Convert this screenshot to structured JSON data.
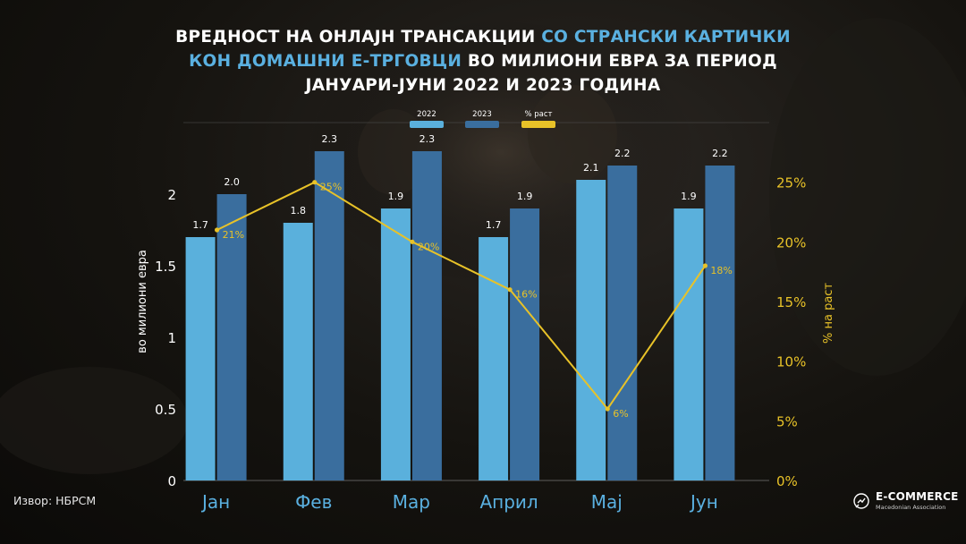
{
  "title": {
    "part1": "ВРЕДНОСТ НА ОНЛАЈН ТРАНСАКЦИИ ",
    "part2_highlight": "СО СТРАНСКИ КАРТИЧКИ",
    "part3_highlight": "КОН ДОМАШНИ Е-ТРГОВЦИ",
    "part4": " ВО МИЛИОНИ ЕВРА ЗА ПЕРИОД",
    "part5": "ЈАНУАРИ-ЈУНИ 2022 И 2023 ГОДИНА"
  },
  "source": "Извор: НБРСМ",
  "logo": {
    "main": "E-COMMERCE",
    "sub": "Macedonian Association"
  },
  "colors": {
    "bar2022": "#5ab0dc",
    "bar2023": "#3a6e9e",
    "growth": "#e8c228",
    "title_highlight": "#5ab0e0"
  },
  "chart_data": {
    "type": "bar",
    "categories": [
      "Јан",
      "Фев",
      "Мар",
      "Април",
      "Мај",
      "Јун"
    ],
    "series": [
      {
        "name": "2022",
        "values": [
          1.7,
          1.8,
          1.9,
          1.7,
          2.1,
          1.9
        ],
        "labels": [
          "1.7",
          "1.8",
          "1.9",
          "1.7",
          "2.1",
          "1.9"
        ]
      },
      {
        "name": "2023",
        "values": [
          2.0,
          2.3,
          2.3,
          1.9,
          2.2,
          2.2
        ],
        "labels": [
          "2.0",
          "2.3",
          "2.3",
          "1.9",
          "2.2",
          "2.2"
        ]
      }
    ],
    "line_series": {
      "name": "% раст",
      "type": "line",
      "axis": "right",
      "values": [
        21,
        25,
        20,
        16,
        6,
        18
      ],
      "labels": [
        "21%",
        "25%",
        "20%",
        "16%",
        "6%",
        "18%"
      ]
    },
    "ylabel": "во милиони евра",
    "ylabel_right": "% на раст",
    "ylim": [
      0,
      2.5
    ],
    "yticks": [
      "0",
      "0.5",
      "1",
      "1.5",
      "2"
    ],
    "ylim_right": [
      0,
      30
    ],
    "yticks_right": [
      "0%",
      "5%",
      "10%",
      "15%",
      "20%",
      "25%"
    ],
    "legend_position": "top-center",
    "grid": false
  }
}
